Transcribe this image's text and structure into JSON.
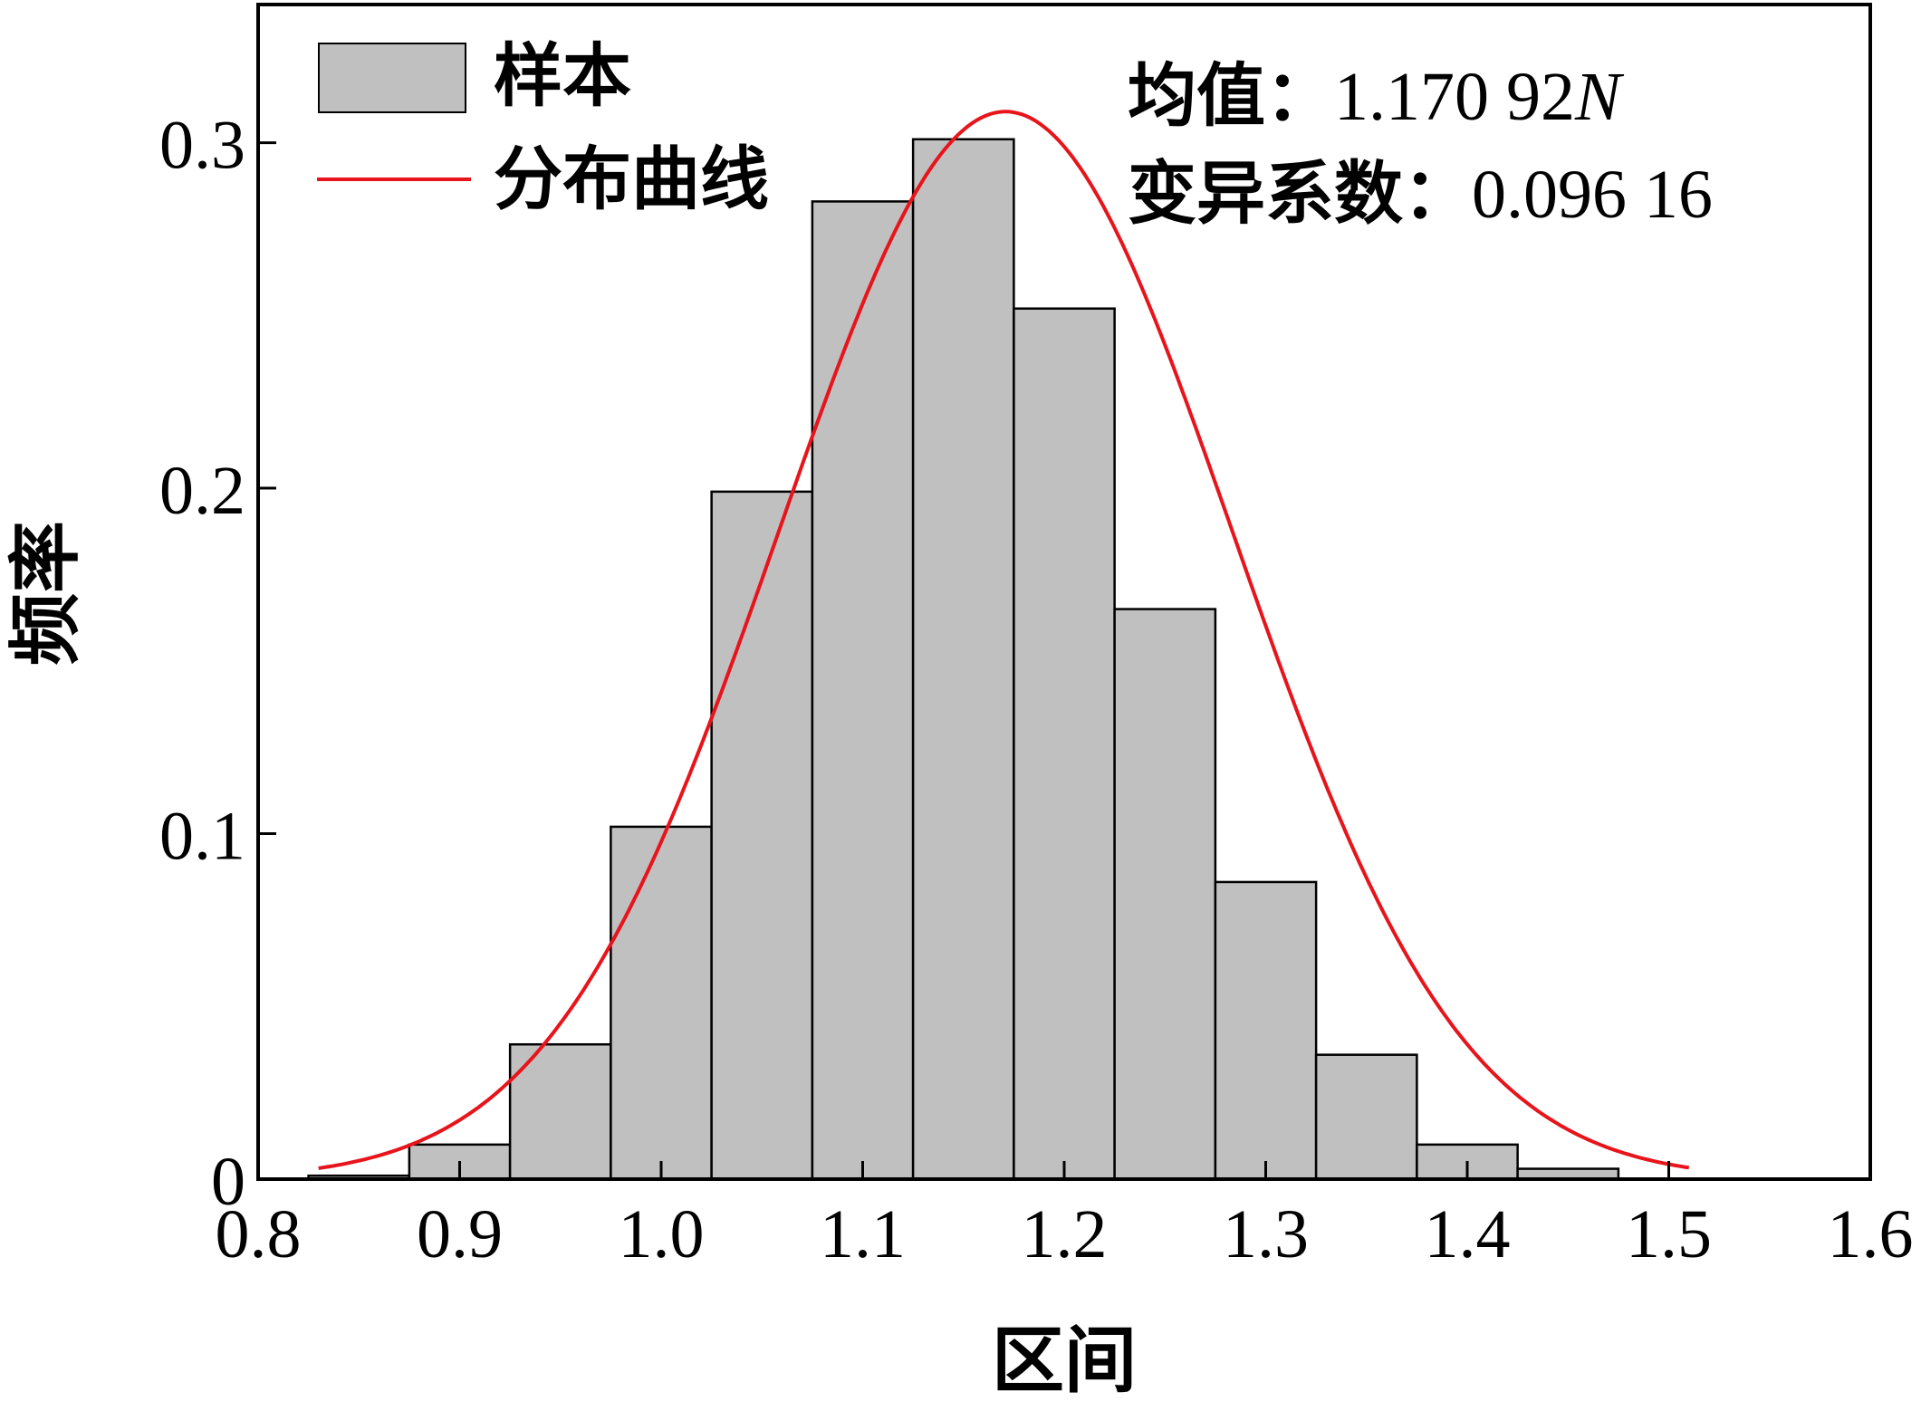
{
  "chart_data": {
    "type": "bar",
    "xlabel": "区间",
    "ylabel": "频率",
    "xlim": [
      0.8,
      1.6
    ],
    "ylim": [
      0,
      0.34
    ],
    "x_ticks": [
      "0.8",
      "0.9",
      "1.0",
      "1.1",
      "1.2",
      "1.3",
      "1.4",
      "1.5",
      "1.6"
    ],
    "y_ticks": [
      "0",
      "0.1",
      "0.2",
      "0.3"
    ],
    "bin_width": 0.05,
    "bins": [
      {
        "x": 0.85,
        "value": 0.001
      },
      {
        "x": 0.9,
        "value": 0.01
      },
      {
        "x": 0.95,
        "value": 0.039
      },
      {
        "x": 1.0,
        "value": 0.102
      },
      {
        "x": 1.05,
        "value": 0.199
      },
      {
        "x": 1.1,
        "value": 0.283
      },
      {
        "x": 1.15,
        "value": 0.301
      },
      {
        "x": 1.2,
        "value": 0.252
      },
      {
        "x": 1.25,
        "value": 0.165
      },
      {
        "x": 1.3,
        "value": 0.086
      },
      {
        "x": 1.35,
        "value": 0.036
      },
      {
        "x": 1.4,
        "value": 0.01
      },
      {
        "x": 1.45,
        "value": 0.003
      }
    ],
    "curve": {
      "type": "normal",
      "mean": 1.17092,
      "cv": 0.09616,
      "peak": 0.309,
      "x_range": [
        0.83,
        1.51
      ]
    },
    "legend": {
      "position": "top-left",
      "entries": [
        {
          "label": "样本",
          "kind": "bar",
          "color": "#c0c0c0"
        },
        {
          "label": "分布曲线",
          "kind": "line",
          "color": "#e8141b"
        }
      ]
    },
    "annotations": [
      {
        "key": "均值：",
        "value": "1.170 92",
        "unit": "N"
      },
      {
        "key": "变异系数：",
        "value": "0.096 16",
        "unit": ""
      }
    ],
    "colors": {
      "bar_fill": "#c0c0c0",
      "bar_stroke": "#000000",
      "curve": "#e8141b"
    },
    "grid": false
  }
}
